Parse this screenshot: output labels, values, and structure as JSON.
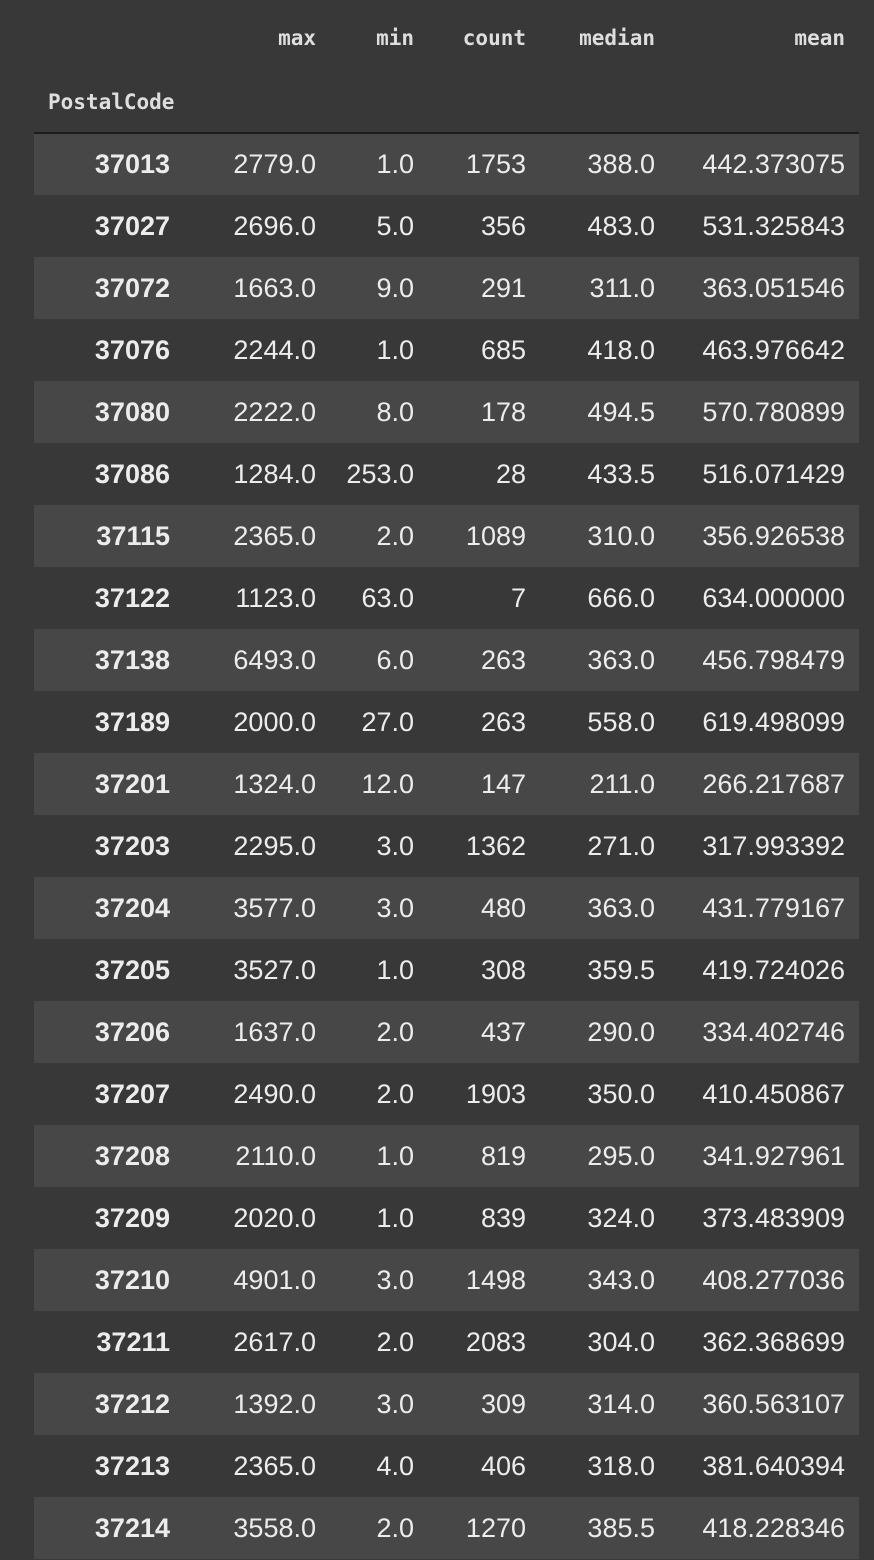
{
  "table": {
    "index_name": "PostalCode",
    "columns": [
      "max",
      "min",
      "count",
      "median",
      "mean"
    ],
    "rows": [
      {
        "index": "37013",
        "values": [
          "2779.0",
          "1.0",
          "1753",
          "388.0",
          "442.373075"
        ]
      },
      {
        "index": "37027",
        "values": [
          "2696.0",
          "5.0",
          "356",
          "483.0",
          "531.325843"
        ]
      },
      {
        "index": "37072",
        "values": [
          "1663.0",
          "9.0",
          "291",
          "311.0",
          "363.051546"
        ]
      },
      {
        "index": "37076",
        "values": [
          "2244.0",
          "1.0",
          "685",
          "418.0",
          "463.976642"
        ]
      },
      {
        "index": "37080",
        "values": [
          "2222.0",
          "8.0",
          "178",
          "494.5",
          "570.780899"
        ]
      },
      {
        "index": "37086",
        "values": [
          "1284.0",
          "253.0",
          "28",
          "433.5",
          "516.071429"
        ]
      },
      {
        "index": "37115",
        "values": [
          "2365.0",
          "2.0",
          "1089",
          "310.0",
          "356.926538"
        ]
      },
      {
        "index": "37122",
        "values": [
          "1123.0",
          "63.0",
          "7",
          "666.0",
          "634.000000"
        ]
      },
      {
        "index": "37138",
        "values": [
          "6493.0",
          "6.0",
          "263",
          "363.0",
          "456.798479"
        ]
      },
      {
        "index": "37189",
        "values": [
          "2000.0",
          "27.0",
          "263",
          "558.0",
          "619.498099"
        ]
      },
      {
        "index": "37201",
        "values": [
          "1324.0",
          "12.0",
          "147",
          "211.0",
          "266.217687"
        ]
      },
      {
        "index": "37203",
        "values": [
          "2295.0",
          "3.0",
          "1362",
          "271.0",
          "317.993392"
        ]
      },
      {
        "index": "37204",
        "values": [
          "3577.0",
          "3.0",
          "480",
          "363.0",
          "431.779167"
        ]
      },
      {
        "index": "37205",
        "values": [
          "3527.0",
          "1.0",
          "308",
          "359.5",
          "419.724026"
        ]
      },
      {
        "index": "37206",
        "values": [
          "1637.0",
          "2.0",
          "437",
          "290.0",
          "334.402746"
        ]
      },
      {
        "index": "37207",
        "values": [
          "2490.0",
          "2.0",
          "1903",
          "350.0",
          "410.450867"
        ]
      },
      {
        "index": "37208",
        "values": [
          "2110.0",
          "1.0",
          "819",
          "295.0",
          "341.927961"
        ]
      },
      {
        "index": "37209",
        "values": [
          "2020.0",
          "1.0",
          "839",
          "324.0",
          "373.483909"
        ]
      },
      {
        "index": "37210",
        "values": [
          "4901.0",
          "3.0",
          "1498",
          "343.0",
          "408.277036"
        ]
      },
      {
        "index": "37211",
        "values": [
          "2617.0",
          "2.0",
          "2083",
          "304.0",
          "362.368699"
        ]
      },
      {
        "index": "37212",
        "values": [
          "1392.0",
          "3.0",
          "309",
          "314.0",
          "360.563107"
        ]
      },
      {
        "index": "37213",
        "values": [
          "2365.0",
          "4.0",
          "406",
          "318.0",
          "381.640394"
        ]
      },
      {
        "index": "37214",
        "values": [
          "3558.0",
          "2.0",
          "1270",
          "385.5",
          "418.228346"
        ]
      }
    ]
  }
}
